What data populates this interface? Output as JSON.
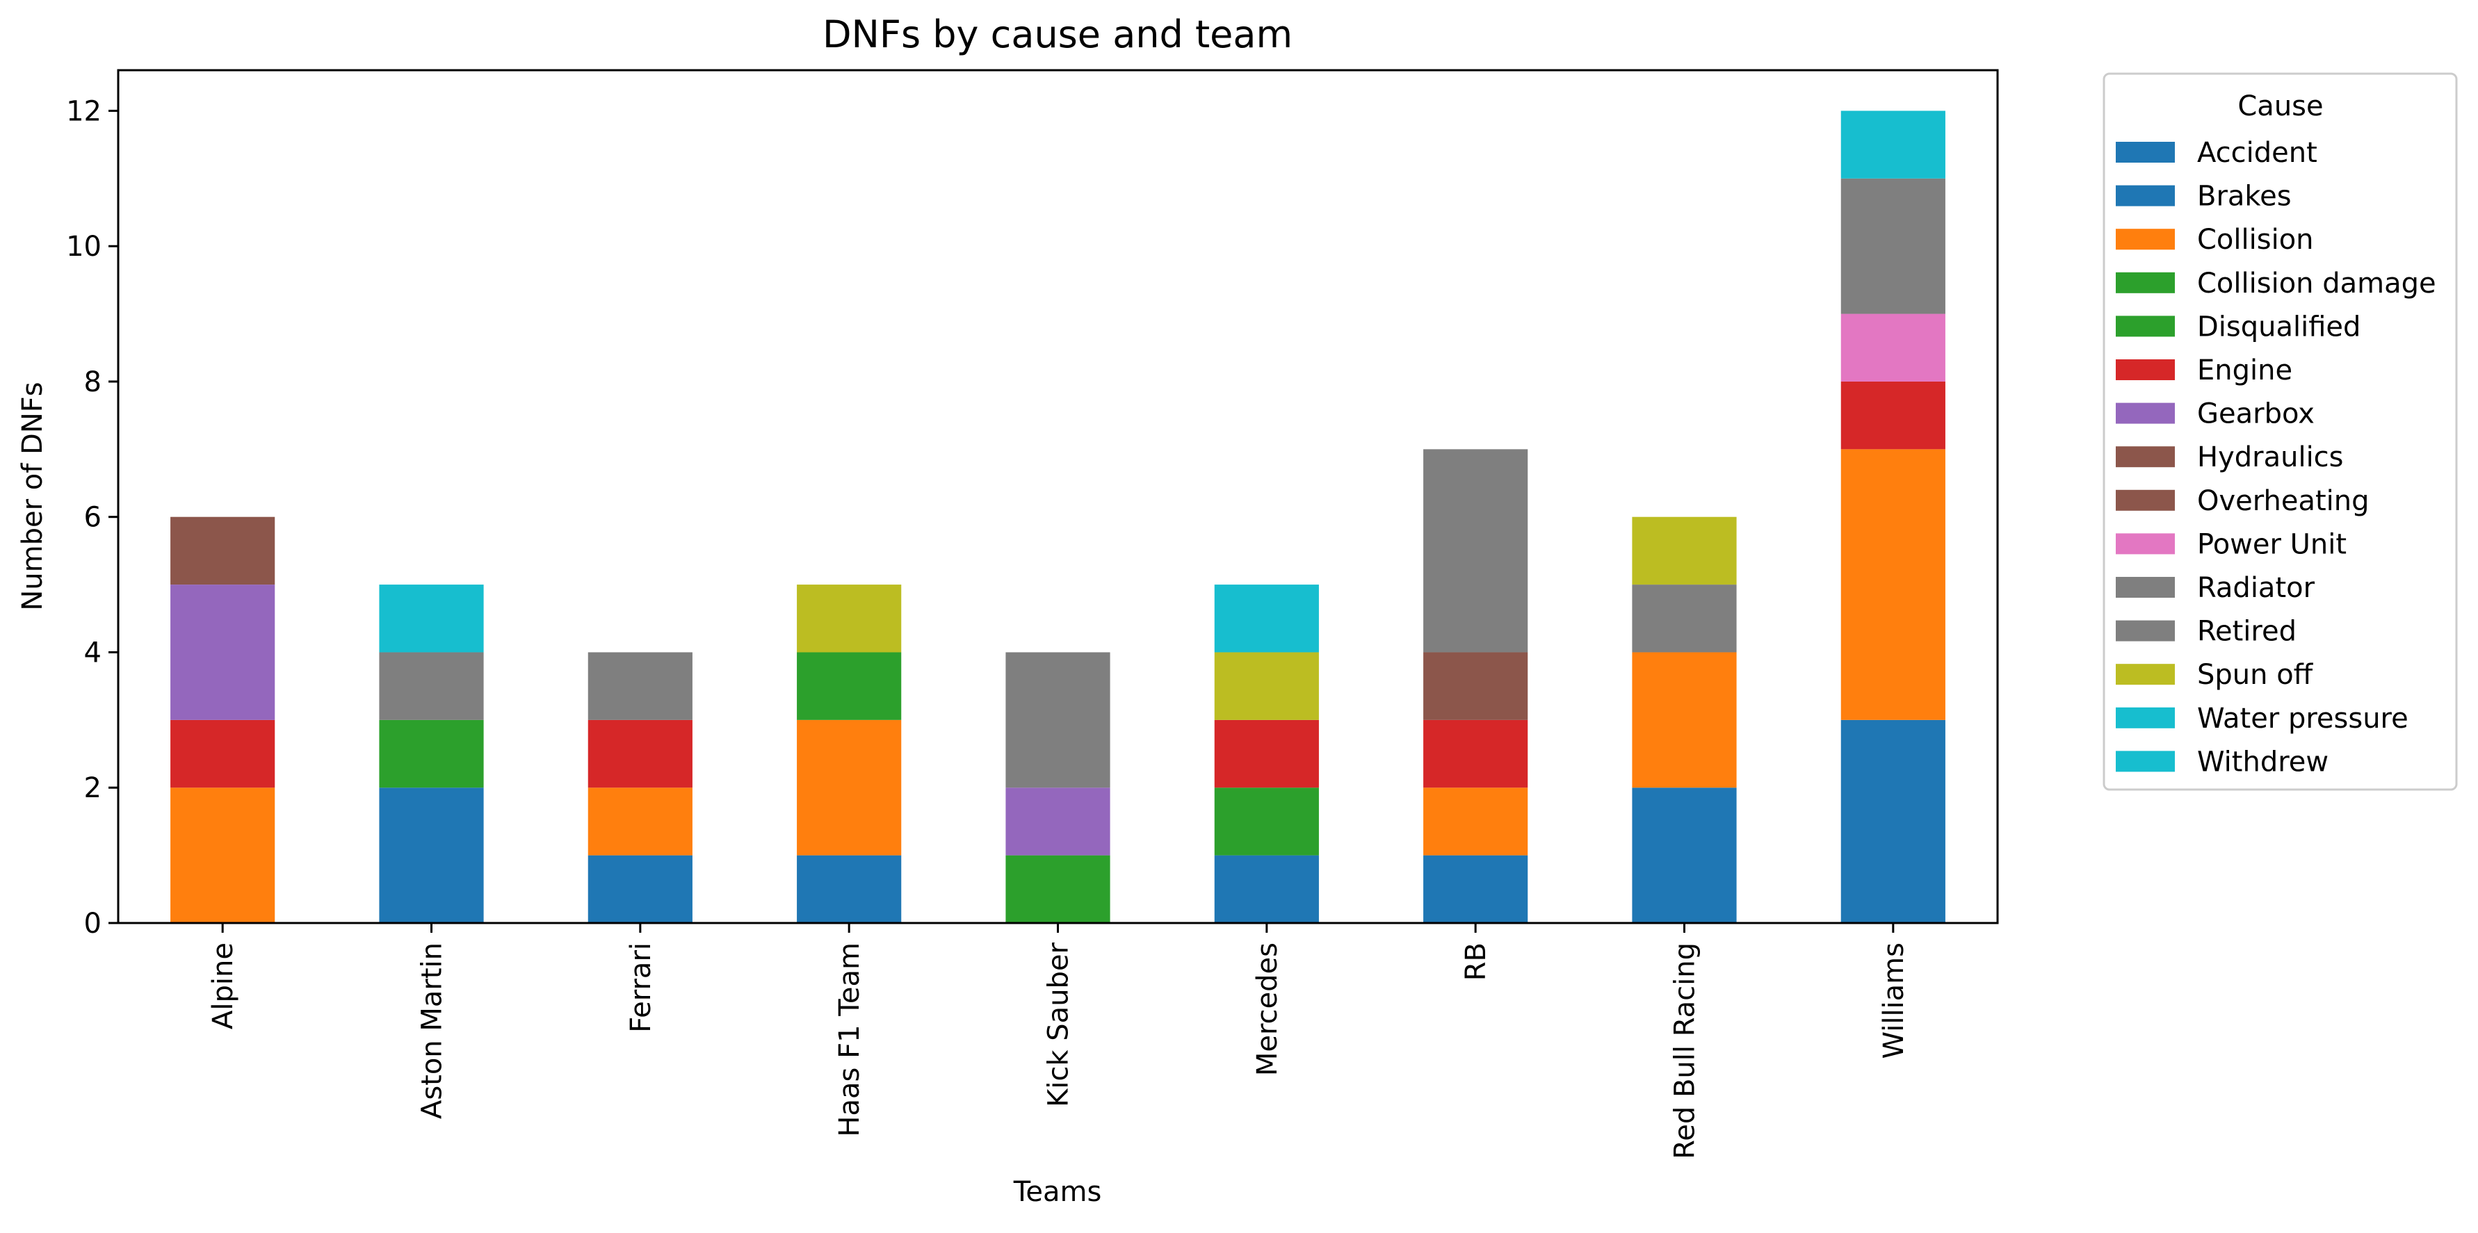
{
  "chart_data": {
    "type": "bar",
    "stacked": true,
    "title": "DNFs by cause and team",
    "xlabel": "Teams",
    "ylabel": "Number of DNFs",
    "ylim": [
      0,
      12.6
    ],
    "yticks": [
      0,
      2,
      4,
      6,
      8,
      10,
      12
    ],
    "grid": false,
    "legend": {
      "title": "Cause",
      "placement": "outside-top-right"
    },
    "categories": [
      "Alpine",
      "Aston Martin",
      "Ferrari",
      "Haas F1 Team",
      "Kick Sauber",
      "Mercedes",
      "RB",
      "Red Bull Racing",
      "Williams"
    ],
    "series": [
      {
        "name": "Accident",
        "color": "#1f77b4",
        "values": [
          0,
          2,
          1,
          1,
          0,
          1,
          1,
          2,
          3
        ]
      },
      {
        "name": "Brakes",
        "color": "#1f77b4",
        "values": [
          0,
          0,
          0,
          0,
          0,
          0,
          0,
          0,
          0
        ]
      },
      {
        "name": "Collision",
        "color": "#ff7f0e",
        "values": [
          2,
          0,
          1,
          2,
          0,
          0,
          1,
          2,
          4
        ]
      },
      {
        "name": "Collision damage",
        "color": "#2ca02c",
        "values": [
          0,
          1,
          0,
          1,
          1,
          1,
          0,
          0,
          0
        ]
      },
      {
        "name": "Disqualified",
        "color": "#2ca02c",
        "values": [
          0,
          0,
          0,
          0,
          0,
          0,
          0,
          0,
          0
        ]
      },
      {
        "name": "Engine",
        "color": "#d62728",
        "values": [
          1,
          0,
          1,
          0,
          0,
          1,
          1,
          0,
          1
        ]
      },
      {
        "name": "Gearbox",
        "color": "#9467bd",
        "values": [
          2,
          0,
          0,
          0,
          1,
          0,
          0,
          0,
          0
        ]
      },
      {
        "name": "Hydraulics",
        "color": "#8c564b",
        "values": [
          1,
          0,
          0,
          0,
          0,
          0,
          1,
          0,
          0
        ]
      },
      {
        "name": "Overheating",
        "color": "#8c564b",
        "values": [
          0,
          0,
          0,
          0,
          0,
          0,
          0,
          0,
          0
        ]
      },
      {
        "name": "Power Unit",
        "color": "#e377c2",
        "values": [
          0,
          0,
          0,
          0,
          0,
          0,
          0,
          0,
          1
        ]
      },
      {
        "name": "Radiator",
        "color": "#7f7f7f",
        "values": [
          0,
          1,
          1,
          0,
          2,
          0,
          3,
          1,
          2
        ]
      },
      {
        "name": "Retired",
        "color": "#7f7f7f",
        "values": [
          0,
          0,
          0,
          0,
          0,
          0,
          0,
          0,
          0
        ]
      },
      {
        "name": "Spun off",
        "color": "#bcbd22",
        "values": [
          0,
          0,
          0,
          1,
          0,
          1,
          0,
          1,
          0
        ]
      },
      {
        "name": "Water pressure",
        "color": "#17becf",
        "values": [
          0,
          1,
          0,
          0,
          0,
          1,
          0,
          0,
          1
        ]
      },
      {
        "name": "Withdrew",
        "color": "#17becf",
        "values": [
          0,
          0,
          0,
          0,
          0,
          0,
          0,
          0,
          0
        ]
      }
    ]
  }
}
